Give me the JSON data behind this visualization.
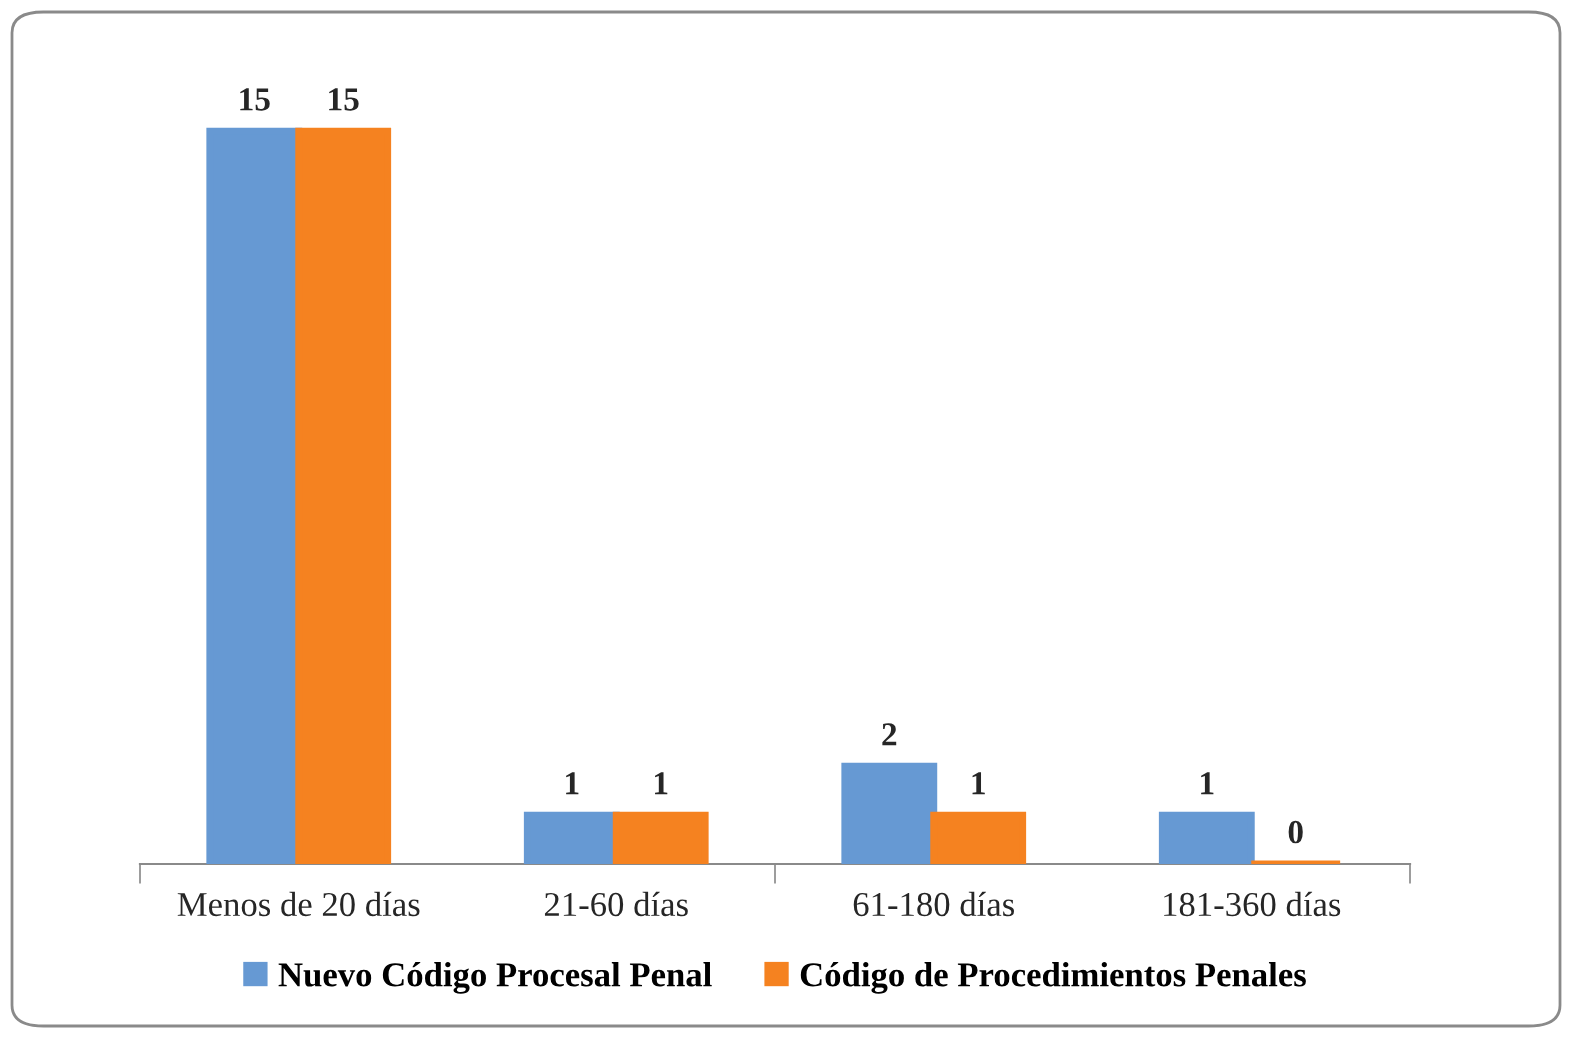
{
  "chart_data": {
    "type": "bar",
    "categories": [
      "Menos de 20 días",
      "21-60 días",
      "61-180 días",
      "181-360 días"
    ],
    "series": [
      {
        "name": "Nuevo Código Procesal Penal",
        "color": "#6699d3",
        "values": [
          15,
          1,
          2,
          1
        ]
      },
      {
        "name": "Código de Procedimientos Penales",
        "color": "#f58220",
        "values": [
          15,
          1,
          1,
          0
        ]
      }
    ],
    "data_labels": true,
    "legend": "bottom",
    "grid": false,
    "tick_labels": "x"
  }
}
